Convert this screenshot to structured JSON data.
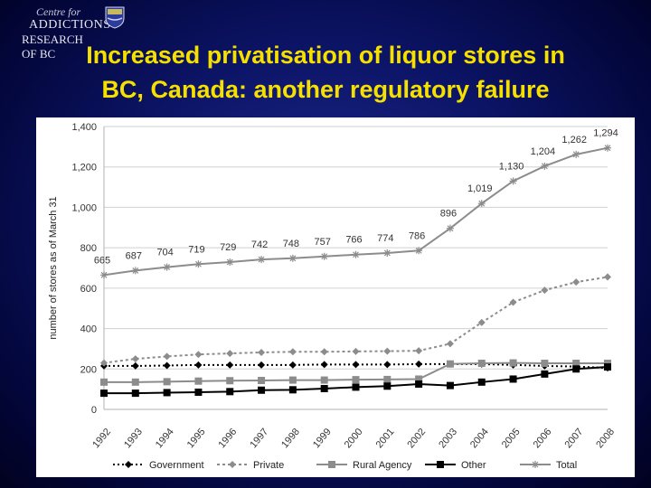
{
  "logo": {
    "line1": "Centre for",
    "line2": "ADDICTIONS",
    "line3": "RESEARCH OF BC"
  },
  "title_line1": "Increased privatisation of liquor stores in",
  "title_line2": "BC, Canada: another regulatory failure",
  "chart_data": {
    "type": "line",
    "categories": [
      "1992",
      "1993",
      "1994",
      "1995",
      "1996",
      "1997",
      "1998",
      "1999",
      "2000",
      "2001",
      "2002",
      "2003",
      "2004",
      "2005",
      "2006",
      "2007",
      "2008"
    ],
    "ylabel": "number of stores as of March 31",
    "ylim": [
      0,
      1400
    ],
    "yticks": [
      "0",
      "200",
      "400",
      "600",
      "800",
      "1,000",
      "1,200",
      "1,400"
    ],
    "grid": true,
    "legend_position": "bottom",
    "series": [
      {
        "name": "Government",
        "color": "#000000",
        "dash": "2,3",
        "marker": "diamond",
        "values": [
          215,
          215,
          217,
          220,
          220,
          220,
          220,
          222,
          222,
          222,
          224,
          224,
          224,
          220,
          215,
          212,
          205
        ]
      },
      {
        "name": "Private",
        "color": "#8c8c8c",
        "dash": "3,3",
        "marker": "diamond",
        "values": [
          230,
          250,
          262,
          272,
          277,
          282,
          285,
          285,
          287,
          288,
          290,
          325,
          430,
          530,
          590,
          630,
          655
        ]
      },
      {
        "name": "Rural Agency",
        "color": "#8c8c8c",
        "dash": "",
        "marker": "square",
        "values": [
          135,
          135,
          137,
          140,
          142,
          143,
          145,
          145,
          147,
          148,
          150,
          225,
          228,
          230,
          228,
          228,
          228
        ]
      },
      {
        "name": "Other",
        "color": "#000000",
        "dash": "",
        "marker": "square",
        "values": [
          80,
          80,
          83,
          85,
          88,
          95,
          97,
          103,
          110,
          115,
          125,
          118,
          135,
          150,
          175,
          200,
          210
        ]
      },
      {
        "name": "Total",
        "color": "#8c8c8c",
        "dash": "",
        "marker": "star",
        "values": [
          665,
          687,
          704,
          719,
          729,
          742,
          748,
          757,
          766,
          774,
          786,
          896,
          1019,
          1130,
          1204,
          1262,
          1294
        ],
        "labels": [
          "665",
          "687",
          "704",
          "719",
          "729",
          "742",
          "748",
          "757",
          "766",
          "774",
          "786",
          "896",
          "1,019",
          "1,130",
          "1,204",
          "1,262",
          "1,294"
        ]
      }
    ]
  }
}
